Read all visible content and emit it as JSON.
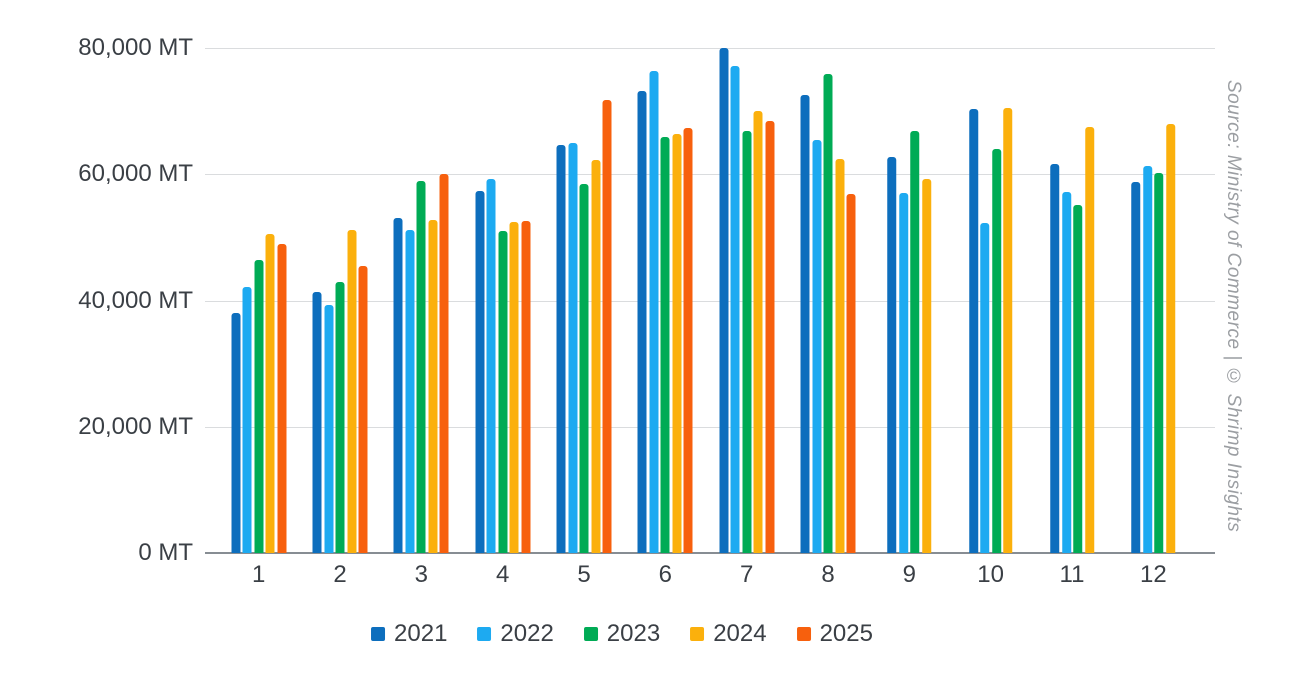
{
  "chart_data": {
    "type": "bar",
    "title": "",
    "xlabel": "",
    "ylabel": "",
    "unit": "MT",
    "categories": [
      "1",
      "2",
      "3",
      "4",
      "5",
      "6",
      "7",
      "8",
      "9",
      "10",
      "11",
      "12"
    ],
    "series": [
      {
        "name": "2021",
        "color": "#0d6ebd",
        "values": [
          38000,
          41300,
          53100,
          57300,
          64700,
          73200,
          80000,
          72600,
          62700,
          70400,
          61700,
          58700
        ]
      },
      {
        "name": "2022",
        "color": "#1daaf1",
        "values": [
          42200,
          39300,
          51200,
          59200,
          65000,
          76400,
          77100,
          65400,
          57100,
          52300,
          57200,
          61300
        ]
      },
      {
        "name": "2023",
        "color": "#00ab55",
        "values": [
          46400,
          42900,
          58900,
          51000,
          58400,
          65900,
          66900,
          75900,
          66900,
          64000,
          55200,
          60200
        ]
      },
      {
        "name": "2024",
        "color": "#fbb00c",
        "values": [
          50600,
          51100,
          52700,
          52400,
          62300,
          66300,
          70100,
          62400,
          59300,
          70500,
          67500,
          67900
        ]
      },
      {
        "name": "2025",
        "color": "#f7600d",
        "values": [
          49000,
          45400,
          60100,
          52600,
          71800,
          67300,
          68500,
          56800,
          null,
          null,
          null,
          null
        ]
      }
    ],
    "ylim": [
      0,
      80000
    ],
    "y_ticks": [
      {
        "value": 0,
        "label": "0 MT"
      },
      {
        "value": 20000,
        "label": "20,000 MT"
      },
      {
        "value": 40000,
        "label": "40,000 MT"
      },
      {
        "value": 60000,
        "label": "60,000 MT"
      },
      {
        "value": 80000,
        "label": "80,000 MT"
      }
    ],
    "grid": true,
    "legend_position": "bottom"
  },
  "source_note": "Source: Ministry of Commerce | © Shrimp Insights"
}
